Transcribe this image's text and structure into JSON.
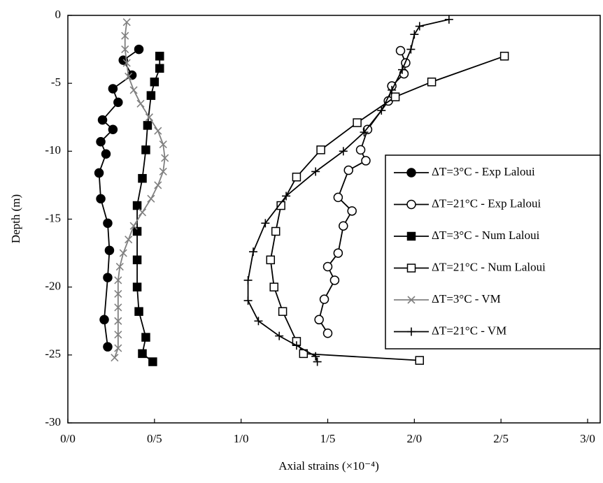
{
  "chart_data": {
    "type": "line",
    "x_label": "Axial strains (×10⁻⁴)",
    "y_label": "Depth (m)",
    "xlim": [
      0,
      3
    ],
    "ylim": [
      -30,
      0
    ],
    "xticks": [
      {
        "value": 0,
        "label": "0/0"
      },
      {
        "value": 0.5,
        "label": "0/5"
      },
      {
        "value": 1,
        "label": "1/0"
      },
      {
        "value": 1.5,
        "label": "1/5"
      },
      {
        "value": 2,
        "label": "2/0"
      },
      {
        "value": 2.5,
        "label": "2/5"
      },
      {
        "value": 3,
        "label": "3/0"
      }
    ],
    "yticks": [
      0,
      -5,
      -10,
      -15,
      -20,
      -25,
      -30
    ],
    "legend": "right",
    "series": [
      {
        "name": "ΔT=3°C - Exp Laloui",
        "color": "#000000",
        "marker": "circle",
        "filled": true,
        "x": [
          0.41,
          0.32,
          0.37,
          0.26,
          0.29,
          0.2,
          0.26,
          0.19,
          0.22,
          0.18,
          0.19,
          0.23,
          0.24,
          0.23,
          0.21,
          0.23
        ],
        "values": [
          -2.5,
          -3.3,
          -4.4,
          -5.4,
          -6.4,
          -7.7,
          -8.4,
          -9.3,
          -10.2,
          -11.6,
          -13.5,
          -15.3,
          -17.3,
          -19.3,
          -22.4,
          -24.4
        ]
      },
      {
        "name": "ΔT=21°C - Exp Laloui",
        "color": "#000000",
        "marker": "circle",
        "filled": false,
        "x": [
          1.92,
          1.95,
          1.94,
          1.87,
          1.85,
          1.73,
          1.69,
          1.72,
          1.62,
          1.56,
          1.64,
          1.59,
          1.56,
          1.5,
          1.54,
          1.48,
          1.45,
          1.5
        ],
        "values": [
          -2.6,
          -3.5,
          -4.3,
          -5.2,
          -6.3,
          -8.4,
          -9.9,
          -10.7,
          -11.4,
          -13.4,
          -14.4,
          -15.5,
          -17.5,
          -18.5,
          -19.5,
          -20.9,
          -22.4,
          -23.4
        ]
      },
      {
        "name": "ΔT=3°C - Num Laloui",
        "color": "#000000",
        "marker": "square",
        "filled": true,
        "x": [
          0.53,
          0.53,
          0.5,
          0.48,
          0.46,
          0.45,
          0.43,
          0.4,
          0.4,
          0.4,
          0.4,
          0.41,
          0.45,
          0.43,
          0.49
        ],
        "values": [
          -3.0,
          -3.9,
          -4.9,
          -5.9,
          -8.1,
          -9.9,
          -12.0,
          -14.0,
          -15.9,
          -18.0,
          -20.0,
          -21.8,
          -23.7,
          -24.9,
          -25.5
        ]
      },
      {
        "name": "ΔT=21°C - Num Laloui",
        "color": "#000000",
        "marker": "square",
        "filled": false,
        "x": [
          2.52,
          2.1,
          1.89,
          1.67,
          1.46,
          1.32,
          1.23,
          1.2,
          1.17,
          1.19,
          1.24,
          1.32,
          1.36,
          2.03
        ],
        "values": [
          -3.0,
          -4.9,
          -6.0,
          -7.9,
          -9.9,
          -11.9,
          -14.0,
          -15.9,
          -18.0,
          -20.0,
          -21.8,
          -24.0,
          -24.9,
          -25.4
        ]
      },
      {
        "name": "ΔT=3°C - VM",
        "color": "#808080",
        "marker": "x",
        "filled": false,
        "x": [
          0.34,
          0.33,
          0.33,
          0.34,
          0.35,
          0.38,
          0.42,
          0.47,
          0.52,
          0.55,
          0.56,
          0.55,
          0.52,
          0.48,
          0.43,
          0.38,
          0.35,
          0.32,
          0.3,
          0.29,
          0.29,
          0.29,
          0.29,
          0.29,
          0.29,
          0.27
        ],
        "values": [
          -0.5,
          -1.5,
          -2.5,
          -3.5,
          -4.5,
          -5.5,
          -6.5,
          -7.5,
          -8.5,
          -9.5,
          -10.5,
          -11.5,
          -12.5,
          -13.5,
          -14.5,
          -15.5,
          -16.5,
          -17.5,
          -18.5,
          -19.5,
          -20.5,
          -21.5,
          -22.5,
          -23.5,
          -24.5,
          -25.2
        ]
      },
      {
        "name": "ΔT=21°C - VM",
        "color": "#000000",
        "marker": "plus",
        "filled": false,
        "x": [
          2.2,
          2.03,
          2.0,
          1.98,
          1.93,
          1.87,
          1.81,
          1.71,
          1.59,
          1.43,
          1.26,
          1.14,
          1.07,
          1.04,
          1.04,
          1.1,
          1.22,
          1.32,
          1.43,
          1.44
        ],
        "values": [
          -0.3,
          -0.8,
          -1.4,
          -2.5,
          -4.0,
          -5.5,
          -7.0,
          -8.6,
          -10.0,
          -11.5,
          -13.3,
          -15.3,
          -17.4,
          -19.5,
          -21.0,
          -22.5,
          -23.6,
          -24.3,
          -25.1,
          -25.5
        ]
      }
    ]
  }
}
